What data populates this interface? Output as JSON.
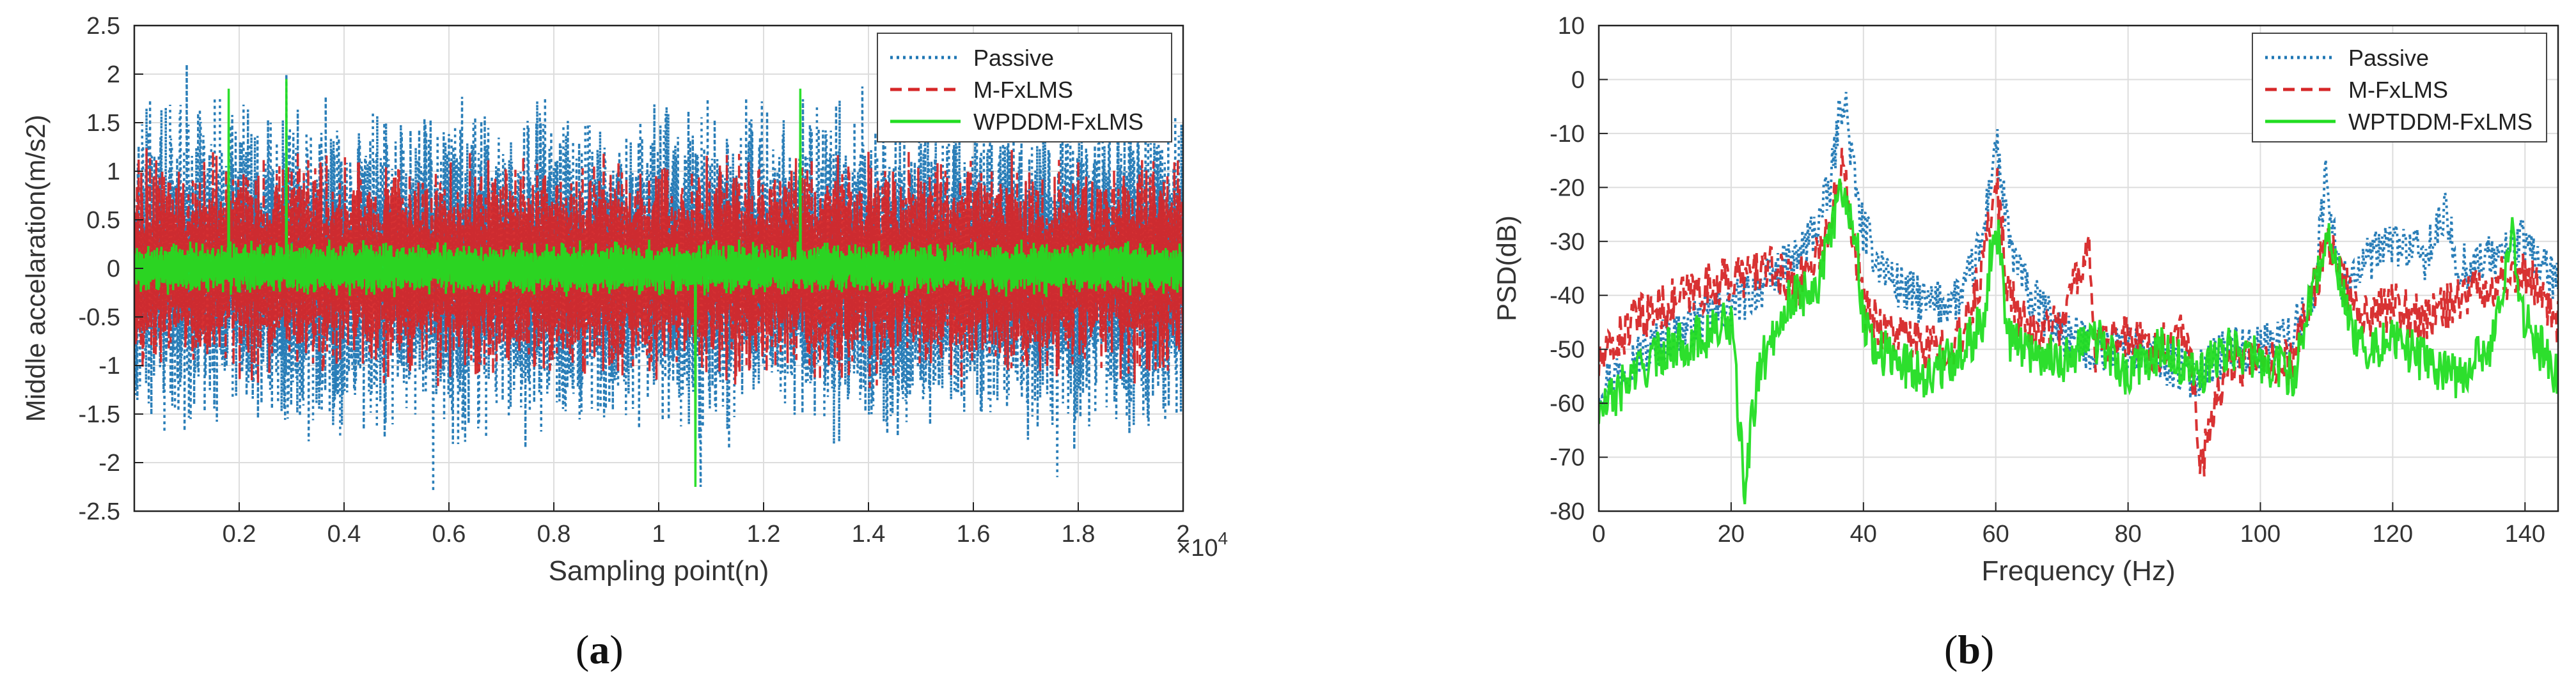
{
  "chart_data": [
    {
      "panel": "(a)",
      "panel_letter": "a",
      "type": "line",
      "title": "",
      "xlabel": "Sampling point(n)",
      "ylabel": "Middle accelaration(m/s2)",
      "x_exponent_label": "×10",
      "x_exponent_power": "4",
      "xlim": [
        0,
        2
      ],
      "ylim": [
        -2.5,
        2.5
      ],
      "xticks": [
        0.2,
        0.4,
        0.6,
        0.8,
        1,
        1.2,
        1.4,
        1.6,
        1.8,
        2
      ],
      "xtick_labels": [
        "0.2",
        "0.4",
        "0.6",
        "0.8",
        "1",
        "1.2",
        "1.4",
        "1.6",
        "1.8",
        "2"
      ],
      "yticks": [
        -2.5,
        -2,
        -1.5,
        -1,
        -0.5,
        0,
        0.5,
        1,
        1.5,
        2,
        2.5
      ],
      "ytick_labels": [
        "-2.5",
        "-2",
        "-1.5",
        "-1",
        "-0.5",
        "0",
        "0.5",
        "1",
        "1.5",
        "2",
        "2.5"
      ],
      "grid": true,
      "legend_position": "top-right",
      "series": [
        {
          "name": "Passive",
          "color": "#1f77b4",
          "style": "dotted",
          "amplitude": 1.9,
          "peaks": [
            [
              0.1,
              2.1
            ],
            [
              0.29,
              2.0
            ],
            [
              0.57,
              -2.3
            ],
            [
              1.08,
              -2.25
            ],
            [
              1.76,
              -2.15
            ]
          ]
        },
        {
          "name": "M-FxLMS",
          "color": "#d62728",
          "style": "dashed",
          "amplitude": 1.25,
          "peaks": [
            [
              0.64,
              1.2
            ],
            [
              1.4,
              1.2
            ]
          ]
        },
        {
          "name": "WPDDM-FxLMS",
          "color": "#22dd22",
          "style": "solid",
          "amplitude": 0.3,
          "peaks": [
            [
              0.18,
              1.85
            ],
            [
              0.29,
              1.95
            ],
            [
              1.07,
              -2.25
            ],
            [
              1.27,
              1.85
            ]
          ]
        }
      ]
    },
    {
      "panel": "(b)",
      "panel_letter": "b",
      "type": "line",
      "title": "",
      "xlabel": "Frequency (Hz)",
      "ylabel": "PSD(dB)",
      "xlim": [
        0,
        145
      ],
      "ylim": [
        -80,
        10
      ],
      "xticks": [
        0,
        20,
        40,
        60,
        80,
        100,
        120,
        140
      ],
      "xtick_labels": [
        "0",
        "20",
        "40",
        "60",
        "80",
        "100",
        "120",
        "140"
      ],
      "yticks": [
        -80,
        -70,
        -60,
        -50,
        -40,
        -30,
        -20,
        -10,
        0,
        10
      ],
      "ytick_labels": [
        "-80",
        "-70",
        "-60",
        "-50",
        "-40",
        "-30",
        "-20",
        "-10",
        "0",
        "10"
      ],
      "grid": true,
      "legend_position": "top-right",
      "series": [
        {
          "name": "Passive",
          "color": "#1f77b4",
          "style": "dotted",
          "x": [
            0,
            5,
            10,
            15,
            20,
            25,
            30,
            33,
            35,
            36,
            37,
            38,
            39,
            40,
            42,
            45,
            50,
            55,
            58,
            60,
            62,
            65,
            70,
            75,
            80,
            85,
            90,
            95,
            100,
            105,
            108,
            110,
            112,
            115,
            120,
            125,
            128,
            130,
            135,
            140,
            145
          ],
          "y": [
            -57,
            -52,
            -48,
            -45,
            -42,
            -38,
            -33,
            -27,
            -20,
            -10,
            -2,
            -12,
            -22,
            -28,
            -33,
            -38,
            -42,
            -40,
            -30,
            -11,
            -30,
            -40,
            -47,
            -50,
            -50,
            -52,
            -55,
            -50,
            -50,
            -47,
            -40,
            -17,
            -38,
            -35,
            -30,
            -33,
            -25,
            -35,
            -33,
            -30,
            -38
          ]
        },
        {
          "name": "M-FxLMS",
          "color": "#d62728",
          "style": "dashed",
          "x": [
            0,
            5,
            10,
            15,
            20,
            25,
            30,
            33,
            35,
            36,
            37,
            38,
            39,
            40,
            42,
            45,
            50,
            55,
            58,
            60,
            62,
            65,
            70,
            74,
            75,
            80,
            85,
            88,
            90,
            91,
            95,
            100,
            105,
            110,
            115,
            120,
            125,
            130,
            135,
            140,
            145
          ],
          "y": [
            -53,
            -45,
            -42,
            -39,
            -37,
            -35,
            -38,
            -32,
            -28,
            -20,
            -12,
            -25,
            -33,
            -42,
            -45,
            -47,
            -50,
            -48,
            -35,
            -18,
            -40,
            -47,
            -45,
            -30,
            -50,
            -48,
            -50,
            -45,
            -55,
            -72,
            -52,
            -53,
            -52,
            -30,
            -45,
            -42,
            -45,
            -40,
            -38,
            -35,
            -45
          ]
        },
        {
          "name": "WPTDDM-FxLMS",
          "color": "#22dd22",
          "style": "solid",
          "x": [
            0,
            5,
            10,
            15,
            20,
            22,
            24,
            28,
            30,
            33,
            35,
            36,
            37,
            38,
            39,
            40,
            42,
            45,
            50,
            55,
            58,
            60,
            62,
            65,
            70,
            75,
            80,
            85,
            90,
            95,
            100,
            105,
            110,
            115,
            120,
            125,
            130,
            135,
            138,
            140,
            145
          ],
          "y": [
            -62,
            -55,
            -50,
            -48,
            -45,
            -76,
            -55,
            -42,
            -40,
            -38,
            -30,
            -22,
            -20,
            -25,
            -30,
            -45,
            -50,
            -52,
            -55,
            -50,
            -45,
            -25,
            -48,
            -50,
            -52,
            -48,
            -55,
            -50,
            -55,
            -50,
            -52,
            -55,
            -28,
            -50,
            -48,
            -52,
            -55,
            -50,
            -28,
            -45,
            -55
          ]
        }
      ]
    }
  ]
}
